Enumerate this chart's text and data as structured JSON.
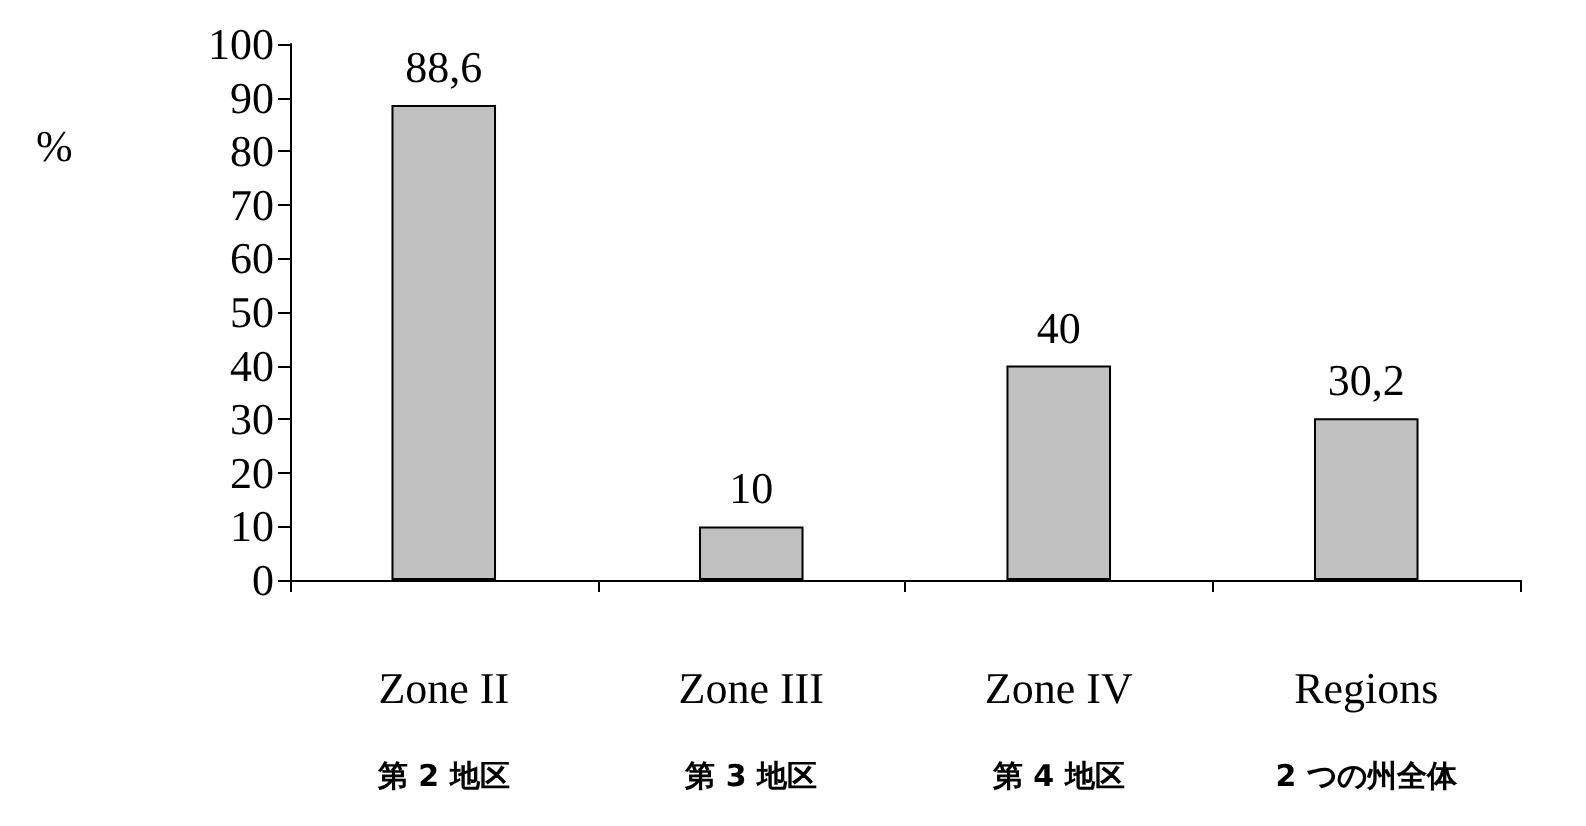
{
  "chart_data": {
    "type": "bar",
    "ylabel": "%",
    "categories": [
      "Zone II\n第 2 地区",
      "Zone III\n第 3 地区",
      "Zone IV\n第 4 地区",
      "Regions\n2 つの州全体"
    ],
    "values": [
      88.6,
      10,
      40,
      30.2
    ],
    "value_labels": [
      "88,6",
      "10",
      "40",
      "30,2"
    ],
    "color": "#c0c0c0",
    "ylim": [
      0,
      100
    ],
    "yticks": [
      0,
      10,
      20,
      30,
      40,
      50,
      60,
      70,
      80,
      90,
      100
    ],
    "grid": false
  }
}
